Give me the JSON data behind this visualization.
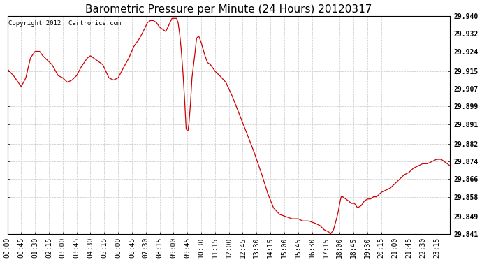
{
  "title": "Barometric Pressure per Minute (24 Hours) 20120317",
  "copyright": "Copyright 2012  Cartronics.com",
  "line_color": "#cc0000",
  "background_color": "#ffffff",
  "grid_color": "#c8c8c8",
  "yticks": [
    29.841,
    29.849,
    29.858,
    29.866,
    29.874,
    29.882,
    29.891,
    29.899,
    29.907,
    29.915,
    29.924,
    29.932,
    29.94
  ],
  "ylim": [
    29.841,
    29.94
  ],
  "xtick_labels": [
    "00:00",
    "00:45",
    "01:30",
    "02:15",
    "03:00",
    "03:45",
    "04:30",
    "05:15",
    "06:00",
    "06:45",
    "07:30",
    "08:15",
    "09:00",
    "09:45",
    "10:30",
    "11:15",
    "12:00",
    "12:45",
    "13:30",
    "14:15",
    "15:00",
    "15:45",
    "16:30",
    "17:15",
    "18:00",
    "18:45",
    "19:30",
    "20:15",
    "21:00",
    "21:45",
    "22:30",
    "23:15"
  ],
  "title_fontsize": 11,
  "tick_fontsize": 7,
  "copyright_fontsize": 6.5,
  "keypoints": [
    [
      0,
      29.916
    ],
    [
      20,
      29.913
    ],
    [
      35,
      29.91
    ],
    [
      45,
      29.908
    ],
    [
      60,
      29.912
    ],
    [
      75,
      29.921
    ],
    [
      90,
      29.924
    ],
    [
      105,
      29.924
    ],
    [
      115,
      29.922
    ],
    [
      130,
      29.92
    ],
    [
      145,
      29.918
    ],
    [
      165,
      29.913
    ],
    [
      180,
      29.912
    ],
    [
      195,
      29.91
    ],
    [
      210,
      29.911
    ],
    [
      225,
      29.913
    ],
    [
      240,
      29.917
    ],
    [
      260,
      29.921
    ],
    [
      270,
      29.922
    ],
    [
      290,
      29.92
    ],
    [
      310,
      29.918
    ],
    [
      330,
      29.912
    ],
    [
      345,
      29.911
    ],
    [
      360,
      29.912
    ],
    [
      375,
      29.916
    ],
    [
      395,
      29.921
    ],
    [
      410,
      29.926
    ],
    [
      430,
      29.93
    ],
    [
      445,
      29.934
    ],
    [
      455,
      29.937
    ],
    [
      465,
      29.938
    ],
    [
      475,
      29.938
    ],
    [
      485,
      29.937
    ],
    [
      495,
      29.935
    ],
    [
      505,
      29.934
    ],
    [
      515,
      29.933
    ],
    [
      525,
      29.936
    ],
    [
      535,
      29.939
    ],
    [
      545,
      29.939
    ],
    [
      550,
      29.939
    ],
    [
      555,
      29.937
    ],
    [
      560,
      29.932
    ],
    [
      565,
      29.925
    ],
    [
      570,
      29.916
    ],
    [
      575,
      29.905
    ],
    [
      578,
      29.897
    ],
    [
      581,
      29.889
    ],
    [
      584,
      29.888
    ],
    [
      587,
      29.888
    ],
    [
      590,
      29.891
    ],
    [
      595,
      29.9
    ],
    [
      600,
      29.912
    ],
    [
      608,
      29.921
    ],
    [
      615,
      29.93
    ],
    [
      622,
      29.931
    ],
    [
      630,
      29.928
    ],
    [
      640,
      29.923
    ],
    [
      650,
      29.919
    ],
    [
      660,
      29.918
    ],
    [
      675,
      29.915
    ],
    [
      690,
      29.913
    ],
    [
      710,
      29.91
    ],
    [
      730,
      29.904
    ],
    [
      755,
      29.895
    ],
    [
      775,
      29.888
    ],
    [
      800,
      29.879
    ],
    [
      825,
      29.869
    ],
    [
      845,
      29.86
    ],
    [
      865,
      29.853
    ],
    [
      885,
      29.85
    ],
    [
      905,
      29.849
    ],
    [
      925,
      29.848
    ],
    [
      945,
      29.848
    ],
    [
      960,
      29.847
    ],
    [
      980,
      29.847
    ],
    [
      1000,
      29.846
    ],
    [
      1015,
      29.845
    ],
    [
      1030,
      29.843
    ],
    [
      1045,
      29.842
    ],
    [
      1050,
      29.841
    ],
    [
      1055,
      29.842
    ],
    [
      1060,
      29.843
    ],
    [
      1068,
      29.847
    ],
    [
      1075,
      29.851
    ],
    [
      1080,
      29.855
    ],
    [
      1085,
      29.858
    ],
    [
      1090,
      29.858
    ],
    [
      1100,
      29.857
    ],
    [
      1110,
      29.856
    ],
    [
      1118,
      29.855
    ],
    [
      1128,
      29.855
    ],
    [
      1138,
      29.853
    ],
    [
      1150,
      29.854
    ],
    [
      1160,
      29.856
    ],
    [
      1170,
      29.857
    ],
    [
      1180,
      29.857
    ],
    [
      1190,
      29.858
    ],
    [
      1200,
      29.858
    ],
    [
      1215,
      29.86
    ],
    [
      1230,
      29.861
    ],
    [
      1245,
      29.862
    ],
    [
      1260,
      29.864
    ],
    [
      1275,
      29.866
    ],
    [
      1290,
      29.868
    ],
    [
      1305,
      29.869
    ],
    [
      1320,
      29.871
    ],
    [
      1335,
      29.872
    ],
    [
      1350,
      29.873
    ],
    [
      1365,
      29.873
    ],
    [
      1380,
      29.874
    ],
    [
      1395,
      29.875
    ],
    [
      1410,
      29.875
    ],
    [
      1420,
      29.874
    ],
    [
      1430,
      29.873
    ],
    [
      1439,
      29.872
    ]
  ]
}
